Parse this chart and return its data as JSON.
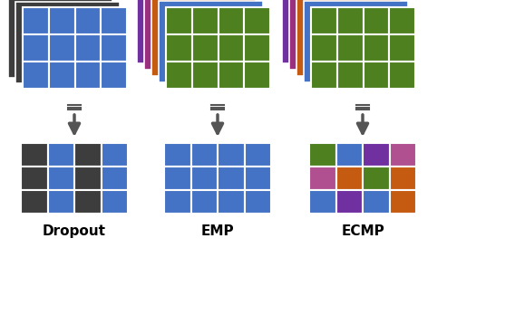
{
  "bg_color": "#ffffff",
  "colors": {
    "dark_gray": "#3d3d3d",
    "blue": "#4472c4",
    "green": "#4e8020",
    "purple": "#7030a0",
    "purple2": "#9b3080",
    "orange": "#c55a11",
    "mauve": "#b05090"
  },
  "labels": [
    "Dropout",
    "EMP",
    "ECMP"
  ],
  "arrow_color": "#555555",
  "grid_line_color": "#ffffff",
  "dropout_bottom": [
    [
      "#3d3d3d",
      "#4472c4",
      "#3d3d3d",
      "#4472c4"
    ],
    [
      "#3d3d3d",
      "#4472c4",
      "#3d3d3d",
      "#4472c4"
    ],
    [
      "#3d3d3d",
      "#4472c4",
      "#3d3d3d",
      "#4472c4"
    ]
  ],
  "ecmp_bottom": [
    [
      "#4e8020",
      "#4472c4",
      "#7030a0",
      "#b05090"
    ],
    [
      "#b05090",
      "#c55a11",
      "#4e8020",
      "#c55a11"
    ],
    [
      "#4472c4",
      "#7030a0",
      "#4472c4",
      "#c55a11"
    ]
  ],
  "emp_stack_colors": [
    "#7030a0",
    "#9b3080",
    "#c55a11",
    "#4472c4"
  ],
  "ecmp_stack_colors": [
    "#7030a0",
    "#9b3080",
    "#c55a11",
    "#4472c4"
  ]
}
